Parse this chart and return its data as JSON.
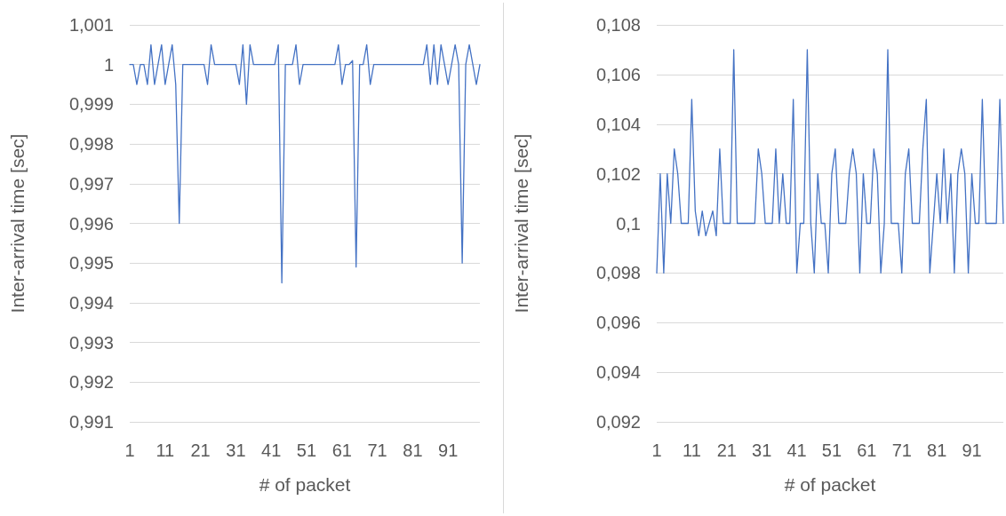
{
  "chart_data": [
    {
      "type": "line",
      "xlabel": "# of packet",
      "ylabel": "Inter-arrival time [sec]",
      "categories": [
        "1",
        null,
        null,
        null,
        null,
        null,
        null,
        null,
        null,
        null,
        "11",
        null,
        null,
        null,
        null,
        null,
        null,
        null,
        null,
        null,
        "21",
        null,
        null,
        null,
        null,
        null,
        null,
        null,
        null,
        null,
        "31",
        null,
        null,
        null,
        null,
        null,
        null,
        null,
        null,
        null,
        "41",
        null,
        null,
        null,
        null,
        null,
        null,
        null,
        null,
        null,
        "51",
        null,
        null,
        null,
        null,
        null,
        null,
        null,
        null,
        null,
        "61",
        null,
        null,
        null,
        null,
        null,
        null,
        null,
        null,
        null,
        "71",
        null,
        null,
        null,
        null,
        null,
        null,
        null,
        null,
        null,
        "81",
        null,
        null,
        null,
        null,
        null,
        null,
        null,
        null,
        null,
        "91",
        null,
        null,
        null,
        null,
        null,
        null,
        null,
        null,
        null
      ],
      "series": [
        {
          "color": "#4472c4",
          "values": [
            1,
            1,
            0.9995,
            1,
            1,
            0.9995,
            1.0005,
            0.9995,
            1,
            1.0005,
            0.9995,
            1,
            1.0005,
            0.9995,
            0.996,
            1,
            1,
            1,
            1,
            1,
            1,
            1,
            0.9995,
            1.0005,
            1,
            1,
            1,
            1,
            1,
            1,
            1,
            0.9995,
            1.0005,
            0.999,
            1.0005,
            1,
            1,
            1,
            1,
            1,
            1,
            1,
            1.0005,
            0.9945,
            1,
            1,
            1,
            1.0005,
            0.9995,
            1,
            1,
            1,
            1,
            1,
            1,
            1,
            1,
            1,
            1,
            1.0005,
            0.9995,
            1,
            1,
            1.0001,
            0.9949,
            1,
            1,
            1.0005,
            0.9995,
            1,
            1,
            1,
            1,
            1,
            1,
            1,
            1,
            1,
            1,
            1,
            1,
            1,
            1,
            1,
            1.0005,
            0.9995,
            1.0005,
            0.9995,
            1.0005,
            1,
            0.9995,
            1,
            1.0005,
            1,
            0.995,
            1,
            1.0005,
            1,
            0.9995,
            1
          ]
        }
      ],
      "ylim": [
        0.991,
        1.001
      ],
      "yticks": [
        {
          "value": 0.991,
          "label": "0,991"
        },
        {
          "value": 0.992,
          "label": "0,992"
        },
        {
          "value": 0.993,
          "label": "0,993"
        },
        {
          "value": 0.994,
          "label": "0,994"
        },
        {
          "value": 0.995,
          "label": "0,995"
        },
        {
          "value": 0.996,
          "label": "0,996"
        },
        {
          "value": 0.997,
          "label": "0,997"
        },
        {
          "value": 0.998,
          "label": "0,998"
        },
        {
          "value": 0.999,
          "label": "0,999"
        },
        1,
        {
          "value": 1.001,
          "label": "1,001"
        }
      ],
      "grid": "y",
      "marker": "none",
      "line_style": "solid"
    },
    {
      "type": "line",
      "xlabel": "# of packet",
      "ylabel": "Inter-arrival time [sec]",
      "categories": [
        "1",
        null,
        null,
        null,
        null,
        null,
        null,
        null,
        null,
        null,
        "11",
        null,
        null,
        null,
        null,
        null,
        null,
        null,
        null,
        null,
        "21",
        null,
        null,
        null,
        null,
        null,
        null,
        null,
        null,
        null,
        "31",
        null,
        null,
        null,
        null,
        null,
        null,
        null,
        null,
        null,
        "41",
        null,
        null,
        null,
        null,
        null,
        null,
        null,
        null,
        null,
        "51",
        null,
        null,
        null,
        null,
        null,
        null,
        null,
        null,
        null,
        "61",
        null,
        null,
        null,
        null,
        null,
        null,
        null,
        null,
        null,
        "71",
        null,
        null,
        null,
        null,
        null,
        null,
        null,
        null,
        null,
        "81",
        null,
        null,
        null,
        null,
        null,
        null,
        null,
        null,
        null,
        "91",
        null,
        null,
        null,
        null,
        null,
        null,
        null,
        null,
        null
      ],
      "series": [
        {
          "color": "#4472c4",
          "values": [
            0.098,
            0.102,
            0.098,
            0.102,
            0.1,
            0.103,
            0.102,
            0.1,
            0.1,
            0.1,
            0.105,
            0.1005,
            0.0995,
            0.1005,
            0.0995,
            0.1,
            0.1005,
            0.0995,
            0.103,
            0.1,
            0.1,
            0.1,
            0.107,
            0.1,
            0.1,
            0.1,
            0.1,
            0.1,
            0.1,
            0.103,
            0.102,
            0.1,
            0.1,
            0.1,
            0.103,
            0.1,
            0.102,
            0.1,
            0.1,
            0.105,
            0.098,
            0.1,
            0.1,
            0.107,
            0.1,
            0.098,
            0.102,
            0.1,
            0.1,
            0.098,
            0.102,
            0.103,
            0.1,
            0.1,
            0.1,
            0.102,
            0.103,
            0.102,
            0.098,
            0.102,
            0.1,
            0.1,
            0.103,
            0.102,
            0.098,
            0.1,
            0.107,
            0.1,
            0.1,
            0.1,
            0.098,
            0.102,
            0.103,
            0.1,
            0.1,
            0.1,
            0.103,
            0.105,
            0.098,
            0.1,
            0.102,
            0.1,
            0.103,
            0.1,
            0.102,
            0.098,
            0.102,
            0.103,
            0.102,
            0.098,
            0.102,
            0.1,
            0.1,
            0.105,
            0.1,
            0.1,
            0.1,
            0.1,
            0.105,
            0.1
          ]
        }
      ],
      "ylim": [
        0.092,
        0.108
      ],
      "yticks": [
        {
          "value": 0.092,
          "label": "0,092"
        },
        {
          "value": 0.094,
          "label": "0,094"
        },
        {
          "value": 0.096,
          "label": "0,096"
        },
        {
          "value": 0.098,
          "label": "0,098"
        },
        {
          "value": 0.1,
          "label": "0,1"
        },
        {
          "value": 0.102,
          "label": "0,102"
        },
        {
          "value": 0.104,
          "label": "0,104"
        },
        {
          "value": 0.106,
          "label": "0,106"
        },
        {
          "value": 0.108,
          "label": "0,108"
        }
      ],
      "grid": "y",
      "marker": "none",
      "line_style": "solid"
    }
  ]
}
